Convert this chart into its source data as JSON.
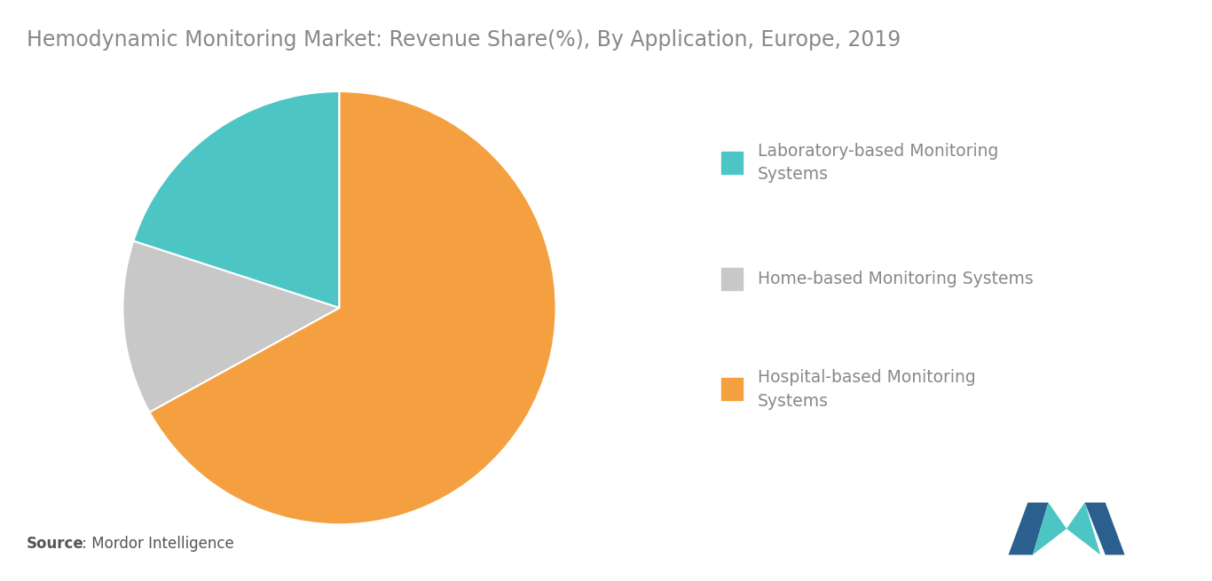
{
  "title": "Hemodynamic Monitoring Market: Revenue Share(%), By Application, Europe, 2019",
  "title_color": "#888888",
  "title_fontsize": 17,
  "slices": [
    20,
    13,
    67
  ],
  "labels": [
    "Laboratory-based Monitoring\nSystems",
    "Home-based Monitoring Systems",
    "Hospital-based Monitoring\nSystems"
  ],
  "colors": [
    "#4DC5C5",
    "#C8C8C8",
    "#F5A040"
  ],
  "startangle": 90,
  "source_bold": "Source",
  "source_rest": " : Mordor Intelligence",
  "background_color": "#ffffff",
  "legend_fontsize": 13.5,
  "legend_text_color": "#888888",
  "logo_color_dark": "#2B5F8E",
  "logo_color_light": "#4DC5C5"
}
